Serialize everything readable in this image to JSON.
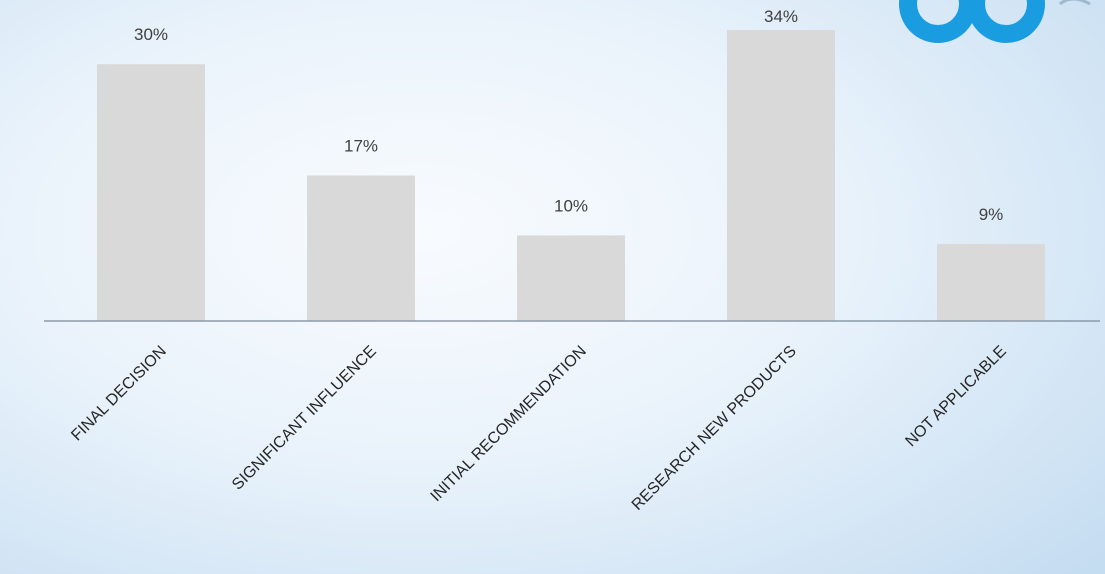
{
  "chart_data": {
    "type": "bar",
    "categories": [
      "FINAL DECISION",
      "SIGNIFICANT INFLUENCE",
      "INITIAL RECOMMENDATION",
      "RESEARCH NEW PRODUCTS",
      "NOT APPLICABLE"
    ],
    "values": [
      30,
      17,
      10,
      34,
      9
    ],
    "data_labels": [
      "30%",
      "17%",
      "10%",
      "34%",
      "9%"
    ],
    "title": "",
    "xlabel": "",
    "ylabel": "",
    "ylim": [
      0,
      34
    ],
    "grid": false,
    "legend": "none",
    "colors": {
      "bar": "#d9d9d9",
      "axis": "#8c9aa8",
      "logo_blue": "#1a9ce0"
    }
  },
  "logo": {
    "icon": "company-logo-icon"
  }
}
